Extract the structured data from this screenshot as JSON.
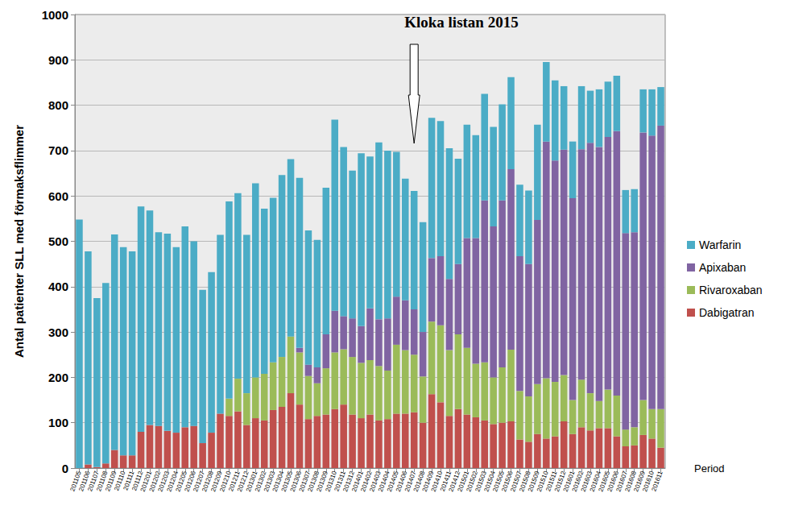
{
  "chart_data": {
    "type": "bar",
    "stacked": true,
    "ylabel": "Antal patienter SLL med förmaksflimmer",
    "xlabel": "Period",
    "categories": [
      "201105",
      "201106",
      "201107",
      "201108",
      "201109",
      "201110",
      "201111",
      "201112",
      "201201",
      "201202",
      "201203",
      "201204",
      "201205",
      "201206",
      "201207",
      "201208",
      "201209",
      "201210",
      "201211",
      "201212",
      "201301",
      "201302",
      "201303",
      "201304",
      "201305",
      "201306",
      "201307",
      "201308",
      "201309",
      "201310",
      "201311",
      "201312",
      "201401",
      "201402",
      "201403",
      "201404",
      "201405",
      "201406",
      "201407",
      "201408",
      "201409",
      "201410",
      "201411",
      "201412",
      "201501",
      "201502",
      "201503",
      "201504",
      "201505",
      "201506",
      "201507",
      "201508",
      "201509",
      "201510",
      "201511",
      "201512",
      "201601",
      "201602",
      "201603",
      "201604",
      "201605",
      "201606",
      "201607",
      "201608",
      "201609",
      "201610",
      "201611"
    ],
    "series": [
      {
        "name": "Warfarin",
        "color": "#4bacc6",
        "values": [
          548,
          470,
          373,
          398,
          475,
          459,
          450,
          497,
          473,
          427,
          435,
          409,
          443,
          407,
          338,
          354,
          394,
          435,
          409,
          349,
          428,
          364,
          363,
          401,
          391,
          375,
          296,
          281,
          323,
          421,
          373,
          326,
          381,
          335,
          390,
          370,
          319,
          268,
          261,
          242,
          309,
          298,
          288,
          232,
          250,
          227,
          235,
          219,
          212,
          203,
          158,
          162,
          210,
          175,
          177,
          140,
          125,
          139,
          115,
          127,
          122,
          122,
          95,
          95,
          95,
          102,
          85
        ]
      },
      {
        "name": "Apixaban",
        "color": "#8064a2",
        "values": [
          0,
          0,
          0,
          0,
          0,
          0,
          0,
          0,
          0,
          0,
          0,
          0,
          0,
          0,
          0,
          0,
          0,
          0,
          0,
          0,
          0,
          0,
          0,
          0,
          0,
          10,
          25,
          35,
          75,
          92,
          73,
          85,
          81,
          114,
          103,
          115,
          106,
          110,
          100,
          98,
          140,
          152,
          157,
          155,
          242,
          277,
          357,
          333,
          368,
          398,
          297,
          292,
          362,
          522,
          488,
          497,
          445,
          508,
          552,
          560,
          557,
          583,
          433,
          430,
          590,
          603,
          625
        ]
      },
      {
        "name": "Rivaroxaban",
        "color": "#9bbb59",
        "values": [
          0,
          0,
          0,
          0,
          0,
          0,
          0,
          0,
          0,
          0,
          0,
          0,
          0,
          0,
          0,
          0,
          0,
          38,
          72,
          70,
          90,
          103,
          105,
          110,
          125,
          115,
          95,
          72,
          102,
          125,
          122,
          127,
          122,
          120,
          120,
          107,
          152,
          140,
          127,
          102,
          160,
          170,
          145,
          165,
          147,
          118,
          128,
          103,
          122,
          158,
          107,
          100,
          110,
          133,
          120,
          102,
          75,
          105,
          82,
          60,
          85,
          90,
          37,
          40,
          77,
          65,
          85
        ]
      },
      {
        "name": "Dabigatran",
        "color": "#c0504d",
        "values": [
          0,
          8,
          2,
          10,
          40,
          28,
          28,
          80,
          95,
          93,
          82,
          78,
          90,
          93,
          55,
          78,
          120,
          115,
          125,
          95,
          110,
          105,
          128,
          135,
          165,
          140,
          108,
          115,
          118,
          130,
          140,
          118,
          110,
          118,
          105,
          108,
          120,
          120,
          123,
          100,
          163,
          145,
          115,
          130,
          118,
          112,
          105,
          97,
          100,
          103,
          63,
          58,
          75,
          65,
          70,
          103,
          75,
          90,
          83,
          88,
          88,
          70,
          48,
          50,
          73,
          65,
          45
        ]
      }
    ],
    "ylim": [
      0,
      1000
    ],
    "yticks": [
      0,
      100,
      200,
      300,
      400,
      500,
      600,
      700,
      800,
      900,
      1000
    ],
    "grid": true,
    "legend": "right",
    "annotations": [
      {
        "text": "Kloka listan 2015",
        "x": "201407"
      }
    ]
  }
}
